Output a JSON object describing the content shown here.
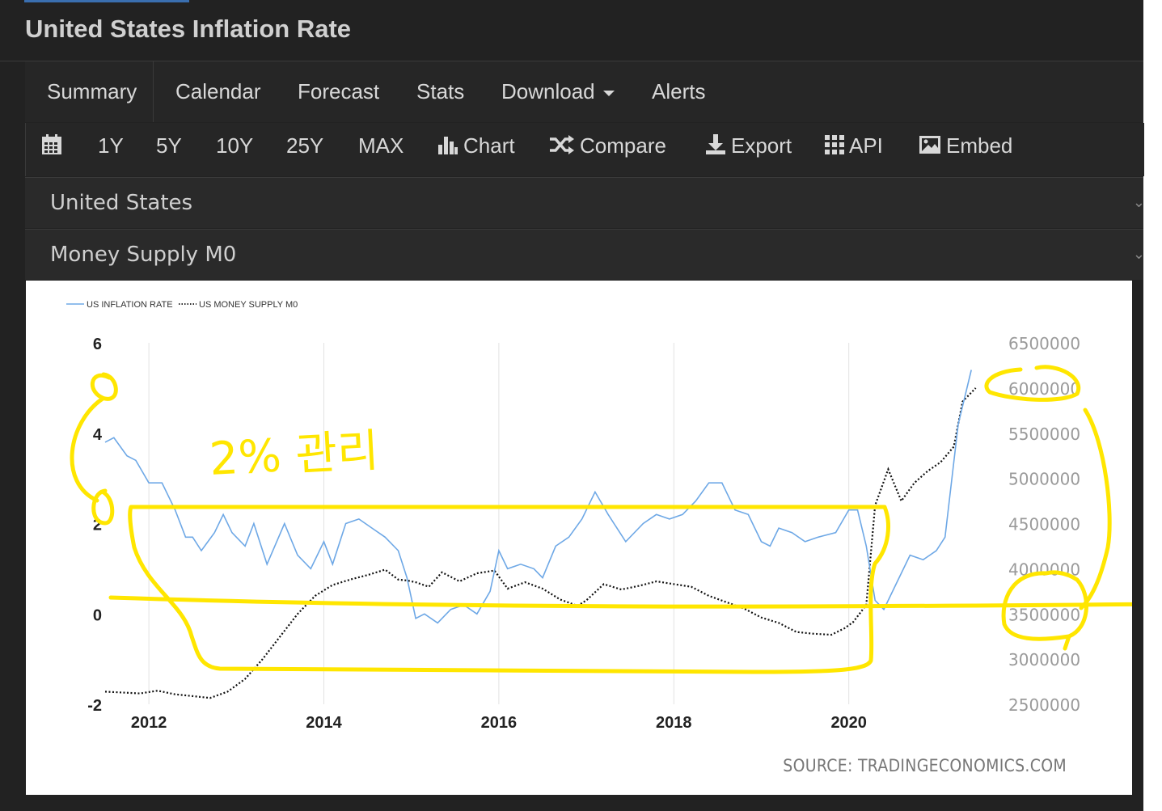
{
  "page": {
    "title": "United States Inflation Rate"
  },
  "nav": {
    "items": [
      "Summary",
      "Calendar",
      "Forecast",
      "Stats",
      "Download",
      "Alerts"
    ]
  },
  "toolbar": {
    "calendar_icon": "calendar-icon",
    "ranges": [
      "1Y",
      "5Y",
      "10Y",
      "25Y",
      "MAX"
    ],
    "chart_label": "Chart",
    "compare_label": "Compare",
    "export_label": "Export",
    "api_label": "API",
    "embed_label": "Embed"
  },
  "selectors": {
    "country": "United States",
    "indicator": "Money Supply M0"
  },
  "source_text": "SOURCE: TRADINGECONOMICS.COM",
  "annotation_text": "2% 관리",
  "colors": {
    "inflation_line": "#6ea8e6",
    "money_line": "#111111",
    "highlight": "#ffe600"
  },
  "chart_data": {
    "type": "line",
    "legend": [
      "US INFLATION RATE",
      "US MONEY SUPPLY M0"
    ],
    "legend_position": "top-left",
    "x_ticks": [
      "2012",
      "2014",
      "2016",
      "2018",
      "2020"
    ],
    "y_left_ticks": [
      "6",
      "4",
      "2",
      "0",
      "-2"
    ],
    "y_right_ticks": [
      "6500000",
      "6000000",
      "5500000",
      "5000000",
      "4500000",
      "4000000",
      "3500000",
      "3000000",
      "2500000"
    ],
    "y_left_range": [
      -2,
      6
    ],
    "y_right_range": [
      2500000,
      6500000
    ],
    "x_range": [
      2011.5,
      2021.5
    ],
    "grid": "vertical",
    "series": [
      {
        "name": "US INFLATION RATE",
        "axis": "left",
        "points": [
          [
            2011.5,
            3.8
          ],
          [
            2011.6,
            3.9
          ],
          [
            2011.75,
            3.5
          ],
          [
            2011.85,
            3.4
          ],
          [
            2012.0,
            2.9
          ],
          [
            2012.15,
            2.9
          ],
          [
            2012.3,
            2.3
          ],
          [
            2012.42,
            1.7
          ],
          [
            2012.5,
            1.7
          ],
          [
            2012.6,
            1.4
          ],
          [
            2012.75,
            1.8
          ],
          [
            2012.85,
            2.2
          ],
          [
            2012.95,
            1.8
          ],
          [
            2013.1,
            1.5
          ],
          [
            2013.2,
            2.0
          ],
          [
            2013.35,
            1.1
          ],
          [
            2013.55,
            2.0
          ],
          [
            2013.7,
            1.3
          ],
          [
            2013.85,
            1.0
          ],
          [
            2014.0,
            1.6
          ],
          [
            2014.1,
            1.1
          ],
          [
            2014.25,
            2.0
          ],
          [
            2014.4,
            2.1
          ],
          [
            2014.55,
            1.9
          ],
          [
            2014.7,
            1.7
          ],
          [
            2014.85,
            1.4
          ],
          [
            2014.95,
            0.8
          ],
          [
            2015.05,
            -0.1
          ],
          [
            2015.15,
            0.0
          ],
          [
            2015.3,
            -0.2
          ],
          [
            2015.45,
            0.1
          ],
          [
            2015.6,
            0.2
          ],
          [
            2015.75,
            0.0
          ],
          [
            2015.9,
            0.5
          ],
          [
            2016.0,
            1.4
          ],
          [
            2016.1,
            1.0
          ],
          [
            2016.25,
            1.1
          ],
          [
            2016.4,
            1.0
          ],
          [
            2016.5,
            0.8
          ],
          [
            2016.65,
            1.5
          ],
          [
            2016.8,
            1.7
          ],
          [
            2016.95,
            2.1
          ],
          [
            2017.1,
            2.7
          ],
          [
            2017.25,
            2.2
          ],
          [
            2017.45,
            1.6
          ],
          [
            2017.65,
            2.0
          ],
          [
            2017.8,
            2.2
          ],
          [
            2017.95,
            2.1
          ],
          [
            2018.1,
            2.2
          ],
          [
            2018.25,
            2.5
          ],
          [
            2018.4,
            2.9
          ],
          [
            2018.55,
            2.9
          ],
          [
            2018.7,
            2.3
          ],
          [
            2018.85,
            2.2
          ],
          [
            2019.0,
            1.6
          ],
          [
            2019.1,
            1.5
          ],
          [
            2019.2,
            1.9
          ],
          [
            2019.35,
            1.8
          ],
          [
            2019.5,
            1.6
          ],
          [
            2019.65,
            1.7
          ],
          [
            2019.85,
            1.8
          ],
          [
            2020.0,
            2.3
          ],
          [
            2020.1,
            2.3
          ],
          [
            2020.2,
            1.5
          ],
          [
            2020.3,
            0.3
          ],
          [
            2020.4,
            0.1
          ],
          [
            2020.55,
            0.7
          ],
          [
            2020.7,
            1.3
          ],
          [
            2020.85,
            1.2
          ],
          [
            2021.0,
            1.4
          ],
          [
            2021.1,
            1.7
          ],
          [
            2021.25,
            4.2
          ],
          [
            2021.4,
            5.4
          ]
        ]
      },
      {
        "name": "US MONEY SUPPLY M0",
        "axis": "right",
        "points": [
          [
            2011.5,
            2640000
          ],
          [
            2011.7,
            2630000
          ],
          [
            2011.9,
            2620000
          ],
          [
            2012.1,
            2650000
          ],
          [
            2012.3,
            2610000
          ],
          [
            2012.5,
            2590000
          ],
          [
            2012.7,
            2570000
          ],
          [
            2012.9,
            2640000
          ],
          [
            2013.1,
            2780000
          ],
          [
            2013.3,
            3000000
          ],
          [
            2013.5,
            3250000
          ],
          [
            2013.7,
            3500000
          ],
          [
            2013.9,
            3700000
          ],
          [
            2014.1,
            3820000
          ],
          [
            2014.3,
            3880000
          ],
          [
            2014.5,
            3930000
          ],
          [
            2014.7,
            3990000
          ],
          [
            2014.85,
            3880000
          ],
          [
            2014.95,
            3870000
          ],
          [
            2015.05,
            3850000
          ],
          [
            2015.2,
            3800000
          ],
          [
            2015.35,
            3960000
          ],
          [
            2015.55,
            3860000
          ],
          [
            2015.75,
            3950000
          ],
          [
            2015.95,
            3980000
          ],
          [
            2016.1,
            3780000
          ],
          [
            2016.3,
            3850000
          ],
          [
            2016.5,
            3780000
          ],
          [
            2016.7,
            3660000
          ],
          [
            2016.9,
            3590000
          ],
          [
            2017.0,
            3650000
          ],
          [
            2017.2,
            3830000
          ],
          [
            2017.4,
            3770000
          ],
          [
            2017.6,
            3810000
          ],
          [
            2017.8,
            3860000
          ],
          [
            2018.0,
            3830000
          ],
          [
            2018.2,
            3800000
          ],
          [
            2018.4,
            3700000
          ],
          [
            2018.6,
            3630000
          ],
          [
            2018.8,
            3560000
          ],
          [
            2019.0,
            3460000
          ],
          [
            2019.2,
            3400000
          ],
          [
            2019.4,
            3300000
          ],
          [
            2019.6,
            3280000
          ],
          [
            2019.8,
            3270000
          ],
          [
            2019.95,
            3340000
          ],
          [
            2020.05,
            3410000
          ],
          [
            2020.2,
            3600000
          ],
          [
            2020.3,
            4700000
          ],
          [
            2020.45,
            5100000
          ],
          [
            2020.6,
            4750000
          ],
          [
            2020.75,
            4950000
          ],
          [
            2020.9,
            5080000
          ],
          [
            2021.05,
            5180000
          ],
          [
            2021.2,
            5350000
          ],
          [
            2021.3,
            5850000
          ],
          [
            2021.45,
            6000000
          ]
        ]
      }
    ]
  }
}
